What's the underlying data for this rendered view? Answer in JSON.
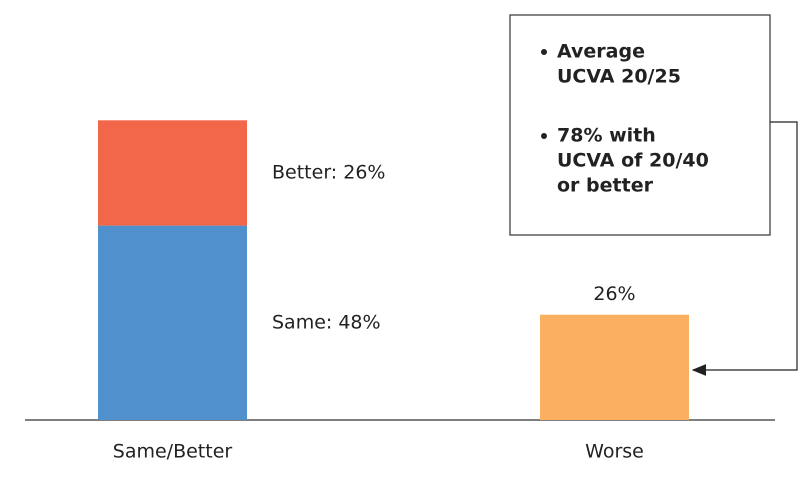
{
  "chart_data": {
    "type": "bar",
    "stacked": true,
    "categories": [
      "Same/Better",
      "Worse"
    ],
    "series": [
      {
        "color": "#4f90cd",
        "values": [
          48,
          null
        ],
        "value_labels": [
          "Same: 48%",
          null
        ]
      },
      {
        "color": "#f26649",
        "values": [
          26,
          null
        ],
        "value_labels": [
          "Better: 26%",
          null
        ]
      },
      {
        "color": "#fbb061",
        "values": [
          null,
          26
        ],
        "value_labels": [
          null,
          "26%"
        ]
      }
    ],
    "annotation": {
      "items": [
        {
          "lines": [
            "Average",
            "UCVA 20/25"
          ]
        },
        {
          "lines": [
            "78% with",
            "UCVA of 20/40",
            "or better"
          ]
        }
      ]
    }
  }
}
